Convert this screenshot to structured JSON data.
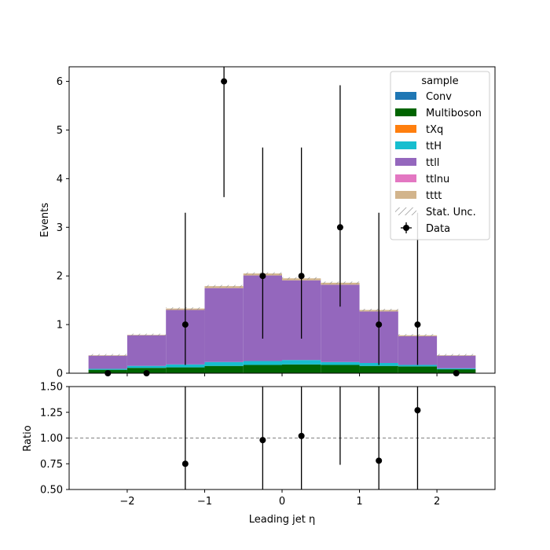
{
  "chart_data": [
    {
      "type": "bar",
      "subtype": "stacked-histogram",
      "ylabel": "Events",
      "xlim": [
        -2.75,
        2.75
      ],
      "ylim": [
        0,
        6.3
      ],
      "yticks": [
        "0",
        "1",
        "2",
        "3",
        "4",
        "5",
        "6"
      ],
      "bin_edges": [
        -2.5,
        -2.0,
        -1.5,
        -1.0,
        -0.5,
        0.0,
        0.5,
        1.0,
        1.5,
        2.0,
        2.5
      ],
      "series": [
        {
          "name": "Conv",
          "color": "#1f77b4",
          "values": [
            0.0,
            0.0,
            0.0,
            0.0,
            0.0,
            0.0,
            0.0,
            0.0,
            0.0,
            0.0
          ]
        },
        {
          "name": "Multiboson",
          "color": "#006400",
          "values": [
            0.07,
            0.11,
            0.12,
            0.15,
            0.17,
            0.18,
            0.17,
            0.15,
            0.14,
            0.08
          ]
        },
        {
          "name": "tXq",
          "color": "#ff7f0e",
          "values": [
            0.0,
            0.0,
            0.0,
            0.0,
            0.0,
            0.0,
            0.0,
            0.0,
            0.0,
            0.0
          ]
        },
        {
          "name": "ttH",
          "color": "#17becf",
          "values": [
            0.02,
            0.04,
            0.06,
            0.08,
            0.08,
            0.09,
            0.06,
            0.06,
            0.03,
            0.02
          ]
        },
        {
          "name": "ttll",
          "color": "#9467bd",
          "values": [
            0.27,
            0.63,
            1.12,
            1.52,
            1.76,
            1.64,
            1.59,
            1.06,
            0.59,
            0.26
          ]
        },
        {
          "name": "ttlnu",
          "color": "#e377c2",
          "values": [
            0.0,
            0.0,
            0.0,
            0.0,
            0.0,
            0.0,
            0.0,
            0.0,
            0.0,
            0.0
          ]
        },
        {
          "name": "tttt",
          "color": "#d2b48c",
          "values": [
            0.01,
            0.01,
            0.03,
            0.04,
            0.04,
            0.04,
            0.04,
            0.03,
            0.02,
            0.01
          ]
        }
      ],
      "data": {
        "name": "Data",
        "x": [
          -2.25,
          -1.75,
          -1.25,
          -0.75,
          -0.25,
          0.25,
          0.75,
          1.25,
          1.75,
          2.25
        ],
        "y": [
          0,
          0,
          1,
          6,
          2,
          2,
          3,
          1,
          1,
          0
        ],
        "err_low": [
          0,
          0,
          0.83,
          2.38,
          1.29,
          1.29,
          1.63,
          0.83,
          0.83,
          0
        ],
        "err_high": [
          0,
          0,
          2.3,
          3.58,
          2.64,
          2.64,
          2.92,
          2.3,
          2.3,
          0
        ]
      },
      "stat_unc_label": "Stat. Unc.",
      "legend": {
        "title": "sample",
        "placement": "top-right"
      }
    },
    {
      "type": "scatter",
      "xlabel": "Leading jet  η",
      "ylabel": "Ratio",
      "xlim": [
        -2.75,
        2.75
      ],
      "ylim": [
        0.5,
        1.5
      ],
      "xticks": [
        -2,
        -1,
        0,
        1,
        2
      ],
      "xtick_labels": [
        "−2",
        "−1",
        "0",
        "1",
        "2"
      ],
      "yticks": [
        "0.50",
        "0.75",
        "1.00",
        "1.25",
        "1.50"
      ],
      "reference_line": 1.0,
      "points": [
        {
          "x": -1.25,
          "y": 0.75,
          "err_low": 0.62,
          "err_high": 1.72
        },
        {
          "x": -0.25,
          "y": 0.98,
          "err_low": 0.63,
          "err_high": 1.29
        },
        {
          "x": 0.25,
          "y": 1.02,
          "err_low": 0.66,
          "err_high": 1.35
        },
        {
          "x": 0.75,
          "y": 1.61,
          "err_low": 0.87,
          "err_high": 1.57
        },
        {
          "x": 1.25,
          "y": 0.78,
          "err_low": 0.64,
          "err_high": 1.78
        },
        {
          "x": 1.75,
          "y": 1.27,
          "err_low": 1.05,
          "err_high": 2.92
        }
      ]
    }
  ]
}
